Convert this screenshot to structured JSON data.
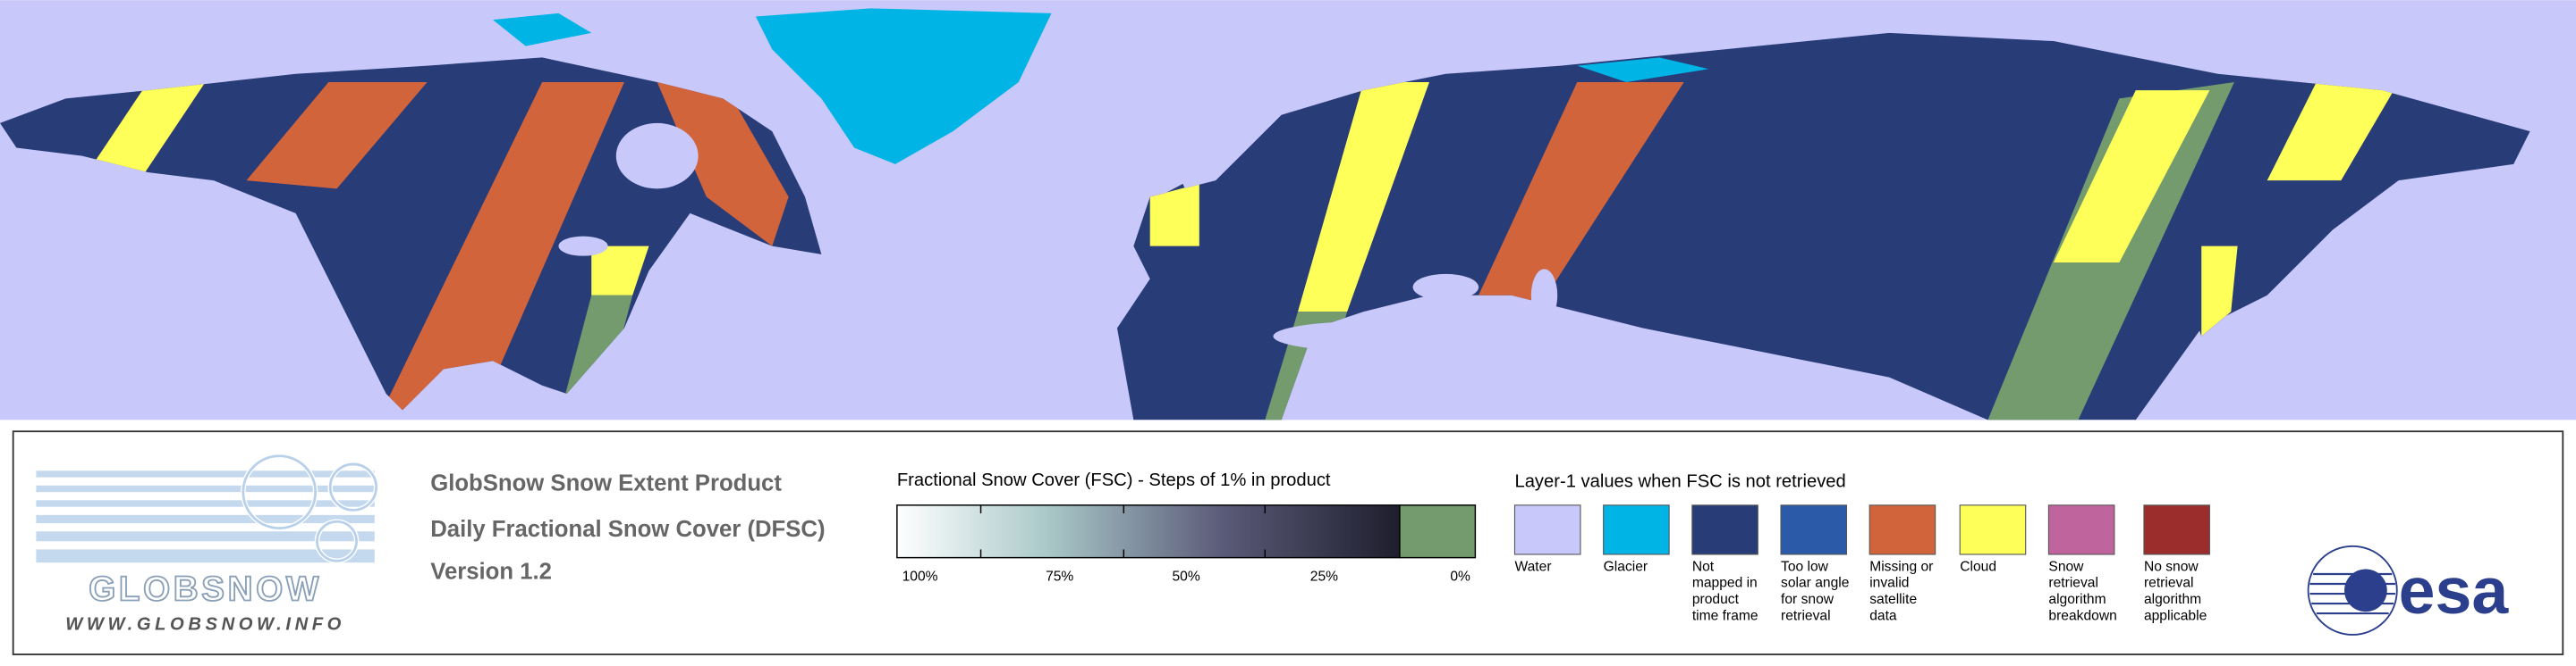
{
  "logo": {
    "name": "GLOBSNOW",
    "url": "WWW.GLOBSNOW.INFO"
  },
  "product": {
    "title": "GlobSnow Snow Extent Product",
    "subtitle": "Daily Fractional Snow Cover (DFSC)",
    "version": "Version 1.2"
  },
  "fsc_scale": {
    "title": "Fractional Snow Cover (FSC) - Steps of 1% in product",
    "labels": [
      "100%",
      "75%",
      "50%",
      "25%",
      "0%"
    ]
  },
  "layer1": {
    "title": "Layer-1 values when FSC is not retrieved",
    "classes": [
      {
        "label": "Water",
        "color": "#c8c8fa"
      },
      {
        "label": "Glacier",
        "color": "#00b4e6"
      },
      {
        "label": "Not mapped in product time frame",
        "color": "#283c78"
      },
      {
        "label": "Too low solar angle for snow retrieval",
        "color": "#2a5aa8"
      },
      {
        "label": "Missing or invalid satellite data",
        "color": "#d2643c"
      },
      {
        "label": "Cloud",
        "color": "#ffff5a"
      },
      {
        "label": "Snow retrieval algorithm breakdown",
        "color": "#c0649e"
      },
      {
        "label": "No snow retrieval algorithm applicable",
        "color": "#9b2d2d"
      }
    ]
  },
  "agency": "esa"
}
